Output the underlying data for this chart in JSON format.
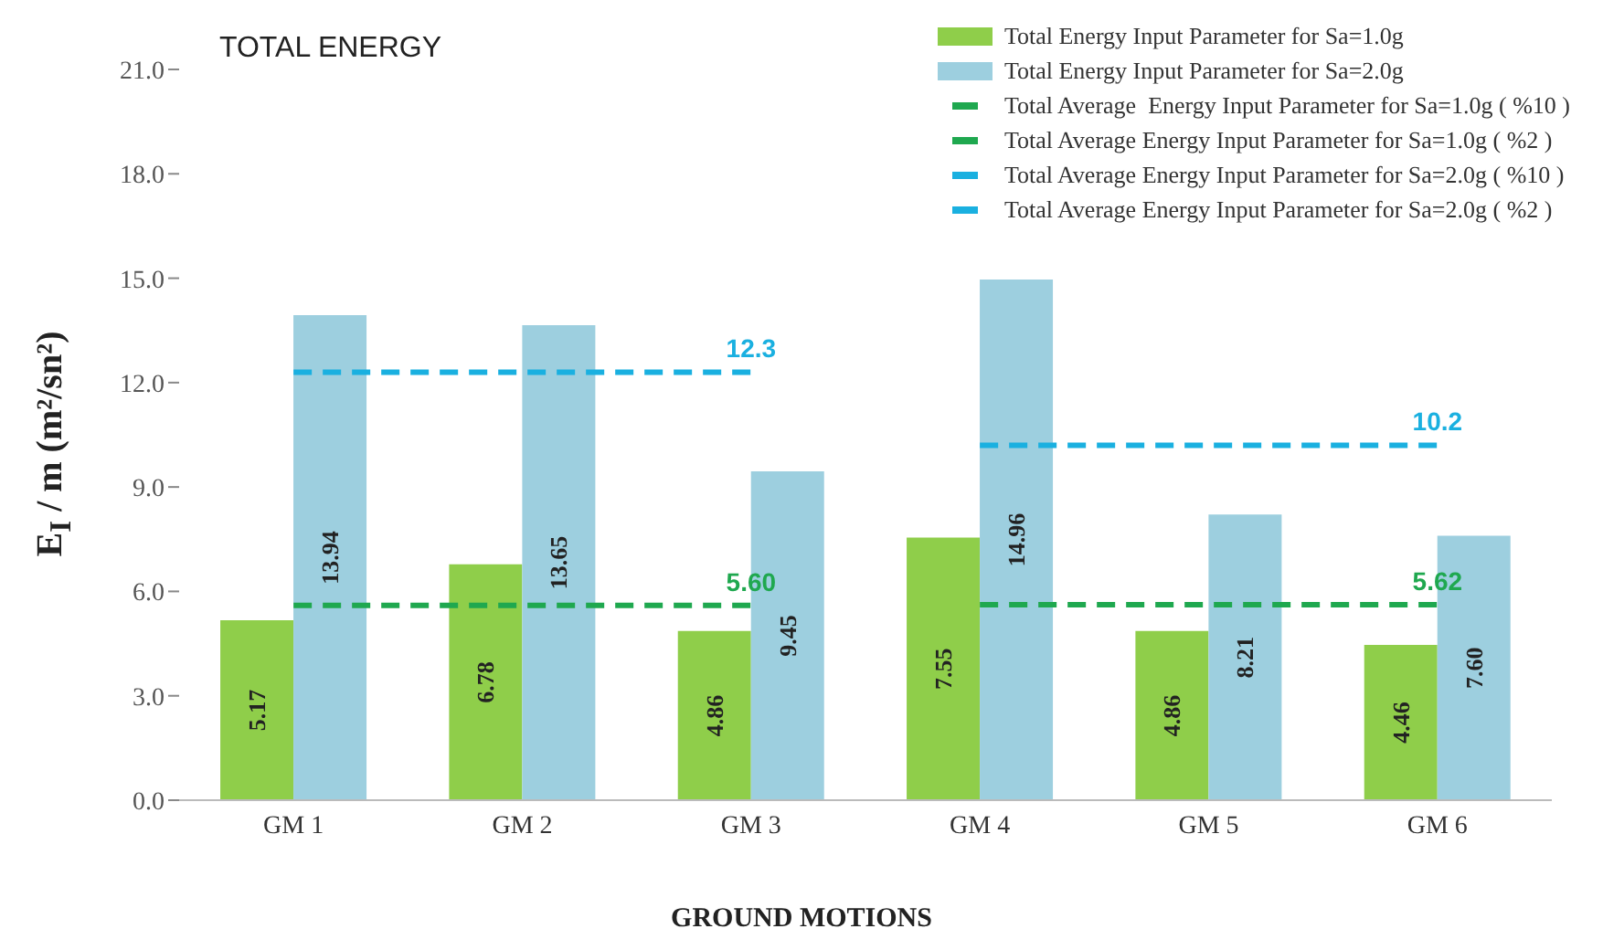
{
  "chart_data": {
    "type": "bar",
    "title": "TOTAL ENERGY",
    "xlabel": "GROUND MOTIONS",
    "ylabel": "E$_{I}$ / m  (m²/sn²)",
    "categories": [
      "GM 1",
      "GM 2",
      "GM 3",
      "GM 4",
      "GM 5",
      "GM 6"
    ],
    "series": [
      {
        "name": "Total Energy Input Parameter for Sa=1.0g",
        "color": "#8fce4a",
        "values": [
          5.17,
          6.78,
          4.86,
          7.55,
          4.86,
          4.46
        ],
        "value_labels": [
          "5.17",
          "6.78",
          "4.86",
          "7.55",
          "4.86",
          "4.46"
        ]
      },
      {
        "name": "Total Energy Input Parameter for Sa=2.0g",
        "color": "#9dcfdf",
        "values": [
          13.94,
          13.65,
          9.45,
          14.96,
          8.21,
          7.6
        ],
        "value_labels": [
          "13.94",
          "13.65",
          "9.45",
          "14.96",
          "8.21",
          "7.60"
        ]
      },
      {
        "name": "Total Average  Energy Input Parameter for Sa=1.0g ( %10 )",
        "type": "line",
        "line_style": "dashed",
        "color": "#1fa84f",
        "values": [
          5.6,
          5.6,
          5.6,
          null,
          null,
          null
        ],
        "value_labels": [
          null,
          null,
          "5.60",
          null,
          null,
          null
        ]
      },
      {
        "name": "Total Average Energy Input Parameter for Sa=1.0g ( %2 )",
        "type": "line",
        "line_style": "dashed",
        "color": "#1fa84f",
        "values": [
          null,
          null,
          null,
          5.62,
          5.62,
          5.62
        ],
        "value_labels": [
          null,
          null,
          null,
          null,
          null,
          "5.62"
        ]
      },
      {
        "name": "Total Average Energy Input Parameter for Sa=2.0g ( %10 )",
        "type": "line",
        "line_style": "dashed",
        "color": "#1ab0e0",
        "values": [
          12.3,
          12.3,
          12.3,
          null,
          null,
          null
        ],
        "value_labels": [
          null,
          null,
          "12.3",
          null,
          null,
          null
        ]
      },
      {
        "name": "Total Average Energy Input Parameter for Sa=2.0g ( %2 )",
        "type": "line",
        "line_style": "dashed",
        "color": "#1ab0e0",
        "values": [
          null,
          null,
          null,
          10.2,
          10.2,
          10.2
        ],
        "value_labels": [
          null,
          null,
          null,
          null,
          null,
          "10.2"
        ]
      }
    ],
    "ylim": [
      0,
      21
    ],
    "yticks": [
      {
        "value": 0,
        "label": "0.0"
      },
      {
        "value": 3,
        "label": "3.0"
      },
      {
        "value": 6,
        "label": "6.0"
      },
      {
        "value": 9,
        "label": "9.0"
      },
      {
        "value": 12,
        "label": "12.0"
      },
      {
        "value": 15,
        "label": "15.0"
      },
      {
        "value": 18,
        "label": "18.0"
      },
      {
        "value": 21,
        "label": "21.0"
      }
    ],
    "grid": false,
    "legend": "top right",
    "marker": "none"
  }
}
